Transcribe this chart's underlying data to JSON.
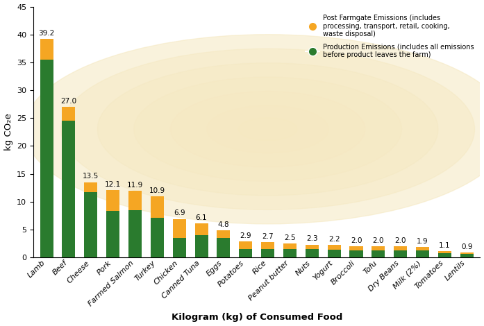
{
  "categories": [
    "Lamb",
    "Beef",
    "Cheese",
    "Pork",
    "Farmed Salmon",
    "Turkey",
    "Chicken",
    "Canned Tuna",
    "Eggs",
    "Potatoes",
    "Rice",
    "Peanut butter",
    "Nuts",
    "Yogurt",
    "Broccoli",
    "Tofu",
    "Dry Beans",
    "Milk (2%)",
    "Tomatoes",
    "Lentils"
  ],
  "totals": [
    39.2,
    27.0,
    13.5,
    12.1,
    11.9,
    10.9,
    6.9,
    6.1,
    4.8,
    2.9,
    2.7,
    2.5,
    2.3,
    2.2,
    2.0,
    2.0,
    2.0,
    1.9,
    1.1,
    0.9
  ],
  "production": [
    35.5,
    24.5,
    11.7,
    8.3,
    8.5,
    7.1,
    3.5,
    4.0,
    3.5,
    1.5,
    1.5,
    1.5,
    1.5,
    1.4,
    1.3,
    1.3,
    1.3,
    1.2,
    0.7,
    0.65
  ],
  "post_farmgate_color": "#F5A623",
  "production_color": "#2A7B2E",
  "background_color": "#FFFFFF",
  "glow_color": "#F5E8C0",
  "ylabel": "kg CO₂e",
  "xlabel": "Kilogram (kg) of Consumed Food",
  "ylim": [
    0,
    45
  ],
  "yticks": [
    0,
    5,
    10,
    15,
    20,
    25,
    30,
    35,
    40,
    45
  ],
  "legend_post_farmgate": "Post Farmgate Emissions (includes\nprocessing, transport, retail, cooking,\nwaste disposal)",
  "legend_production": "Production Emissions (includes all emissions\nbefore product leaves the farm)",
  "annotation_fontsize": 7.5,
  "label_fontsize": 9.5,
  "tick_fontsize": 8
}
